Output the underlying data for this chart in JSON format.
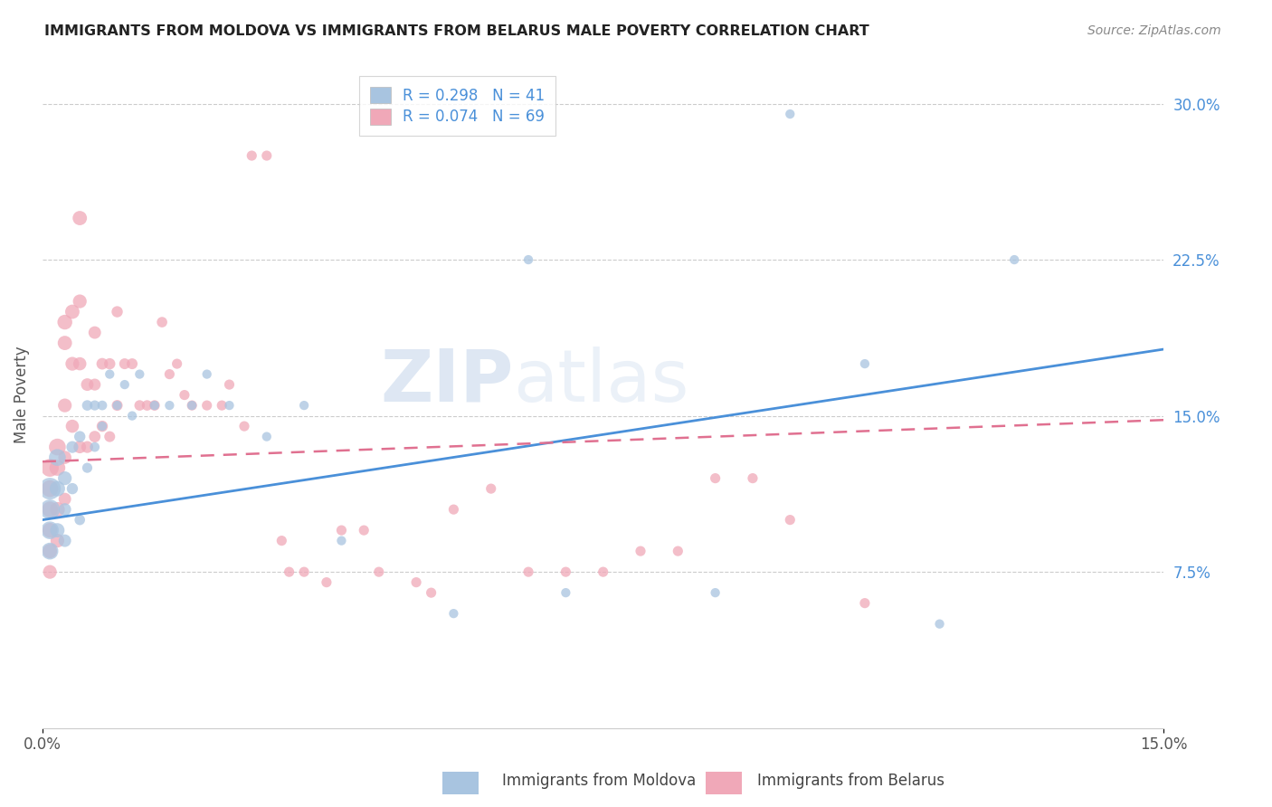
{
  "title": "IMMIGRANTS FROM MOLDOVA VS IMMIGRANTS FROM BELARUS MALE POVERTY CORRELATION CHART",
  "source": "Source: ZipAtlas.com",
  "ylabel": "Male Poverty",
  "right_yticks": [
    "30.0%",
    "22.5%",
    "15.0%",
    "7.5%"
  ],
  "right_ytick_vals": [
    0.3,
    0.225,
    0.15,
    0.075
  ],
  "xmin": 0.0,
  "xmax": 0.15,
  "ymin": 0.0,
  "ymax": 0.32,
  "legend_R1": "R = 0.298",
  "legend_N1": "N = 41",
  "legend_R2": "R = 0.074",
  "legend_N2": "N = 69",
  "legend_label1": "Immigrants from Moldova",
  "legend_label2": "Immigrants from Belarus",
  "color_moldova": "#a8c4e0",
  "color_belarus": "#f0a8b8",
  "line_color_moldova": "#4a90d9",
  "line_color_belarus": "#e07090",
  "watermark_zip": "ZIP",
  "watermark_atlas": "atlas",
  "moldova_x": [
    0.001,
    0.001,
    0.001,
    0.001,
    0.002,
    0.002,
    0.002,
    0.003,
    0.003,
    0.003,
    0.004,
    0.004,
    0.005,
    0.005,
    0.006,
    0.006,
    0.007,
    0.007,
    0.008,
    0.008,
    0.009,
    0.01,
    0.011,
    0.012,
    0.013,
    0.015,
    0.017,
    0.02,
    0.022,
    0.025,
    0.03,
    0.035,
    0.04,
    0.055,
    0.065,
    0.07,
    0.09,
    0.1,
    0.11,
    0.12,
    0.13
  ],
  "moldova_y": [
    0.115,
    0.105,
    0.095,
    0.085,
    0.13,
    0.115,
    0.095,
    0.12,
    0.105,
    0.09,
    0.135,
    0.115,
    0.14,
    0.1,
    0.155,
    0.125,
    0.155,
    0.135,
    0.155,
    0.145,
    0.17,
    0.155,
    0.165,
    0.15,
    0.17,
    0.155,
    0.155,
    0.155,
    0.17,
    0.155,
    0.14,
    0.155,
    0.09,
    0.055,
    0.225,
    0.065,
    0.065,
    0.295,
    0.175,
    0.05,
    0.225
  ],
  "belarus_x": [
    0.001,
    0.001,
    0.001,
    0.001,
    0.001,
    0.001,
    0.002,
    0.002,
    0.002,
    0.002,
    0.003,
    0.003,
    0.003,
    0.003,
    0.003,
    0.004,
    0.004,
    0.004,
    0.005,
    0.005,
    0.005,
    0.005,
    0.006,
    0.006,
    0.007,
    0.007,
    0.007,
    0.008,
    0.008,
    0.009,
    0.009,
    0.01,
    0.01,
    0.011,
    0.012,
    0.013,
    0.014,
    0.015,
    0.016,
    0.017,
    0.018,
    0.019,
    0.02,
    0.022,
    0.024,
    0.025,
    0.027,
    0.028,
    0.03,
    0.032,
    0.033,
    0.035,
    0.038,
    0.04,
    0.043,
    0.045,
    0.05,
    0.052,
    0.055,
    0.06,
    0.065,
    0.07,
    0.075,
    0.08,
    0.085,
    0.09,
    0.095,
    0.1,
    0.11
  ],
  "belarus_y": [
    0.125,
    0.115,
    0.105,
    0.095,
    0.085,
    0.075,
    0.135,
    0.125,
    0.105,
    0.09,
    0.195,
    0.185,
    0.155,
    0.13,
    0.11,
    0.2,
    0.175,
    0.145,
    0.245,
    0.205,
    0.175,
    0.135,
    0.165,
    0.135,
    0.19,
    0.165,
    0.14,
    0.175,
    0.145,
    0.175,
    0.14,
    0.2,
    0.155,
    0.175,
    0.175,
    0.155,
    0.155,
    0.155,
    0.195,
    0.17,
    0.175,
    0.16,
    0.155,
    0.155,
    0.155,
    0.165,
    0.145,
    0.275,
    0.275,
    0.09,
    0.075,
    0.075,
    0.07,
    0.095,
    0.095,
    0.075,
    0.07,
    0.065,
    0.105,
    0.115,
    0.075,
    0.075,
    0.075,
    0.085,
    0.085,
    0.12,
    0.12,
    0.1,
    0.06
  ],
  "moldova_sizes": [
    300,
    250,
    200,
    180,
    180,
    150,
    130,
    120,
    100,
    100,
    90,
    80,
    80,
    70,
    70,
    65,
    65,
    60,
    60,
    55,
    55,
    55,
    55,
    55,
    55,
    55,
    55,
    55,
    55,
    55,
    55,
    55,
    55,
    55,
    55,
    55,
    55,
    55,
    55,
    55,
    55
  ],
  "belarus_sizes": [
    200,
    180,
    160,
    140,
    130,
    120,
    180,
    160,
    140,
    120,
    140,
    130,
    120,
    110,
    100,
    130,
    120,
    110,
    130,
    120,
    110,
    100,
    100,
    90,
    100,
    90,
    85,
    85,
    80,
    80,
    75,
    80,
    75,
    75,
    75,
    70,
    70,
    70,
    70,
    65,
    65,
    65,
    65,
    65,
    65,
    65,
    65,
    65,
    65,
    65,
    65,
    65,
    65,
    65,
    65,
    65,
    65,
    65,
    65,
    65,
    65,
    65,
    65,
    65,
    65,
    65,
    65,
    65,
    65
  ]
}
